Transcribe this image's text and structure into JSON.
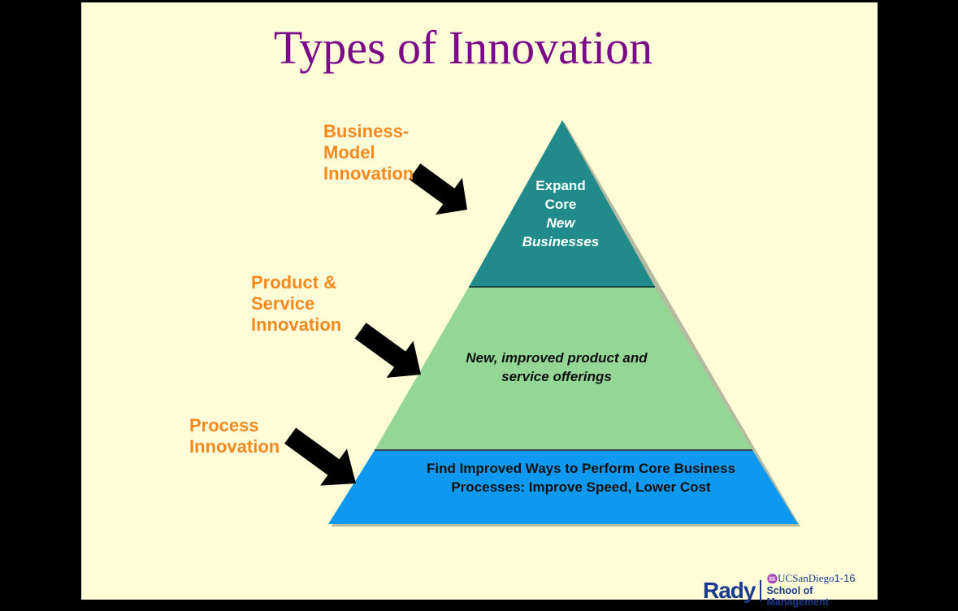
{
  "title": "Types of Innovation",
  "labels": {
    "business_model": "Business-\nModel\nInnovation",
    "product_service": "Product &\nService\nInnovation",
    "process": "Process\nInnovation"
  },
  "tiers": {
    "top": {
      "line1": "Expand",
      "line2": "Core",
      "line3": "New",
      "line4": "Businesses",
      "color": "#218a8a"
    },
    "middle": {
      "line1": "New, improved product and",
      "line2": "service offerings",
      "color": "#93d695"
    },
    "bottom": {
      "line1": "Find Improved Ways to Perform Core Business",
      "line2": "Processes: Improve Speed, Lower Cost",
      "color": "#0d99f0"
    }
  },
  "colors": {
    "background": "#fefdd8",
    "title": "#7a0a8a",
    "label": "#f5891f",
    "arrow": "#000000"
  },
  "footer": {
    "logo_text": "Rady",
    "ucsd": "UCSanDiego",
    "page_number": "1-16",
    "school": "School of Management"
  }
}
